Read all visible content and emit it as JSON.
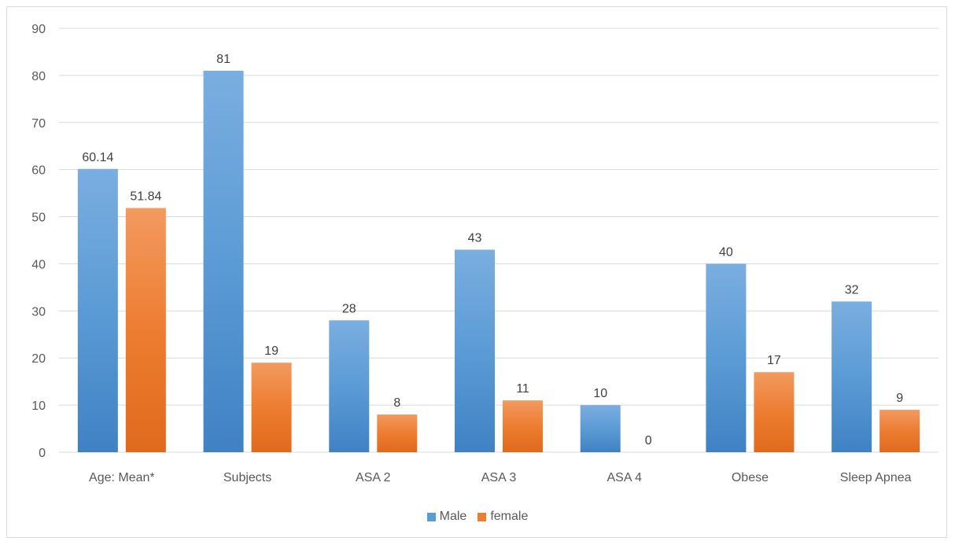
{
  "chart_data": {
    "type": "bar",
    "title": "",
    "xlabel": "",
    "ylabel": "",
    "ylim": [
      0,
      90
    ],
    "yticks": [
      0,
      10,
      20,
      30,
      40,
      50,
      60,
      70,
      80,
      90
    ],
    "grid": true,
    "legend_position": "bottom",
    "categories": [
      "Age: Mean*",
      "Subjects",
      "ASA 2",
      "ASA 3",
      "ASA 4",
      "Obese",
      "Sleep Apnea"
    ],
    "series": [
      {
        "name": "Male",
        "color": "#5b9bd5",
        "values": [
          60.14,
          81,
          28,
          43,
          10,
          40,
          32
        ],
        "labels": [
          "60.14",
          "81",
          "28",
          "43",
          "10",
          "40",
          "32"
        ]
      },
      {
        "name": "female",
        "color": "#ed7d31",
        "values": [
          51.84,
          19,
          8,
          11,
          0,
          17,
          9
        ],
        "labels": [
          "51.84",
          "19",
          "8",
          "11",
          "0",
          "17",
          "9"
        ]
      }
    ]
  }
}
